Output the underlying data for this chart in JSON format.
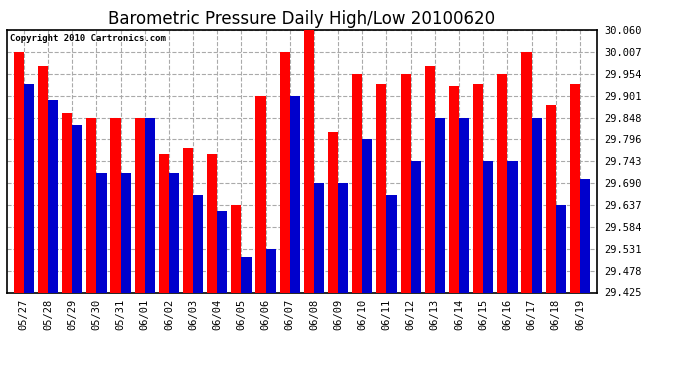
{
  "title": "Barometric Pressure Daily High/Low 20100620",
  "copyright": "Copyright 2010 Cartronics.com",
  "categories": [
    "05/27",
    "05/28",
    "05/29",
    "05/30",
    "05/31",
    "06/01",
    "06/02",
    "06/03",
    "06/04",
    "06/05",
    "06/06",
    "06/07",
    "06/08",
    "06/09",
    "06/10",
    "06/11",
    "06/12",
    "06/13",
    "06/14",
    "06/15",
    "06/16",
    "06/17",
    "06/18",
    "06/19"
  ],
  "highs": [
    30.007,
    29.972,
    29.86,
    29.848,
    29.848,
    29.848,
    29.76,
    29.775,
    29.76,
    29.637,
    29.901,
    30.007,
    30.06,
    29.813,
    29.954,
    29.93,
    29.954,
    29.972,
    29.925,
    29.93,
    29.954,
    30.007,
    29.878,
    29.93
  ],
  "lows": [
    29.93,
    29.89,
    29.83,
    29.714,
    29.714,
    29.848,
    29.714,
    29.66,
    29.622,
    29.51,
    29.531,
    29.901,
    29.69,
    29.69,
    29.796,
    29.66,
    29.743,
    29.848,
    29.848,
    29.743,
    29.743,
    29.848,
    29.637,
    29.7
  ],
  "high_color": "#ff0000",
  "low_color": "#0000cc",
  "bg_color": "#ffffff",
  "plot_bg_color": "#ffffff",
  "grid_color": "#aaaaaa",
  "ymin": 29.425,
  "ymax": 30.06,
  "yticks": [
    29.425,
    29.478,
    29.531,
    29.584,
    29.637,
    29.69,
    29.743,
    29.796,
    29.848,
    29.901,
    29.954,
    30.007,
    30.06
  ],
  "bar_width": 0.42,
  "title_fontsize": 12,
  "tick_fontsize": 7.5,
  "copyright_fontsize": 6.5
}
